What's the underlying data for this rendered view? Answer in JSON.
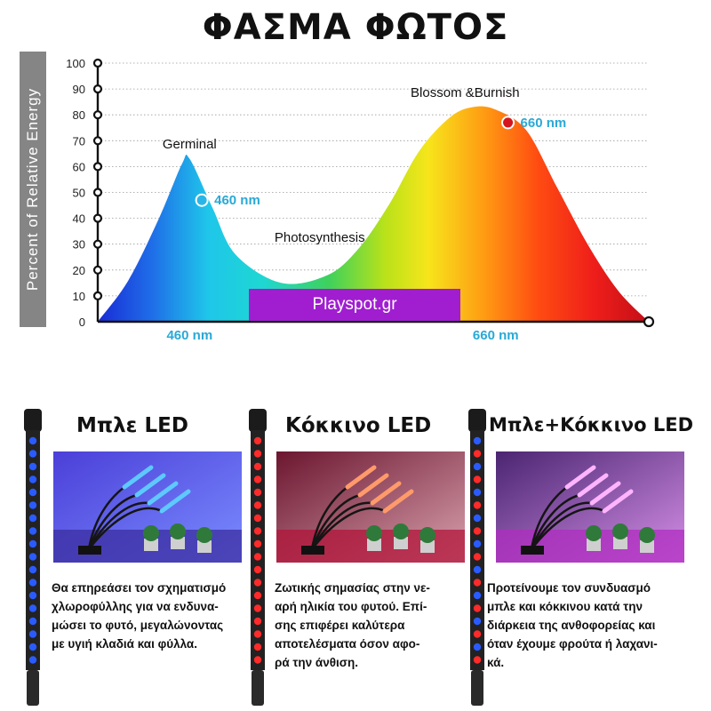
{
  "title": "ΦΑΣΜΑ ΦΩΤΟΣ",
  "watermark": "Playspot.gr",
  "chart_data": {
    "type": "area",
    "ylabel": "Percent of Relative Energy",
    "yticks": [
      0,
      10,
      20,
      30,
      40,
      50,
      60,
      70,
      80,
      90,
      100
    ],
    "ylim": [
      0,
      100
    ],
    "xlim": [
      400,
      760
    ],
    "xticks": [
      {
        "value": 460,
        "label": "460 nm"
      },
      {
        "value": 660,
        "label": "660 nm"
      }
    ],
    "grid": true,
    "series": [
      {
        "x": [
          400,
          420,
          440,
          455,
          460,
          475,
          490,
          520,
          550,
          570,
          590,
          610,
          630,
          645,
          660,
          680,
          700,
          720,
          740,
          760
        ],
        "y": [
          0,
          16,
          40,
          61,
          63,
          44,
          26,
          15,
          18,
          28,
          45,
          66,
          79,
          83,
          82,
          74,
          52,
          30,
          12,
          0
        ]
      }
    ],
    "annotations": [
      {
        "label": "Germinal",
        "x": 460,
        "y": 67
      },
      {
        "label": "460 nm",
        "x": 468,
        "y": 47,
        "point": "blue"
      },
      {
        "label": "Photosynthesis",
        "x": 545,
        "y": 31
      },
      {
        "label": "Blossom &Burnish",
        "x": 640,
        "y": 87
      },
      {
        "label": "660 nm",
        "x": 668,
        "y": 77,
        "point": "red"
      }
    ]
  },
  "cards": [
    {
      "title": "Μπλε LED",
      "light": "blue",
      "lines": [
        "Θα επηρεάσει τον σχηματισμό",
        "χλωροφύλλης για να ενδυνα-",
        "μώσει το φυτό, μεγαλώνοντας",
        "με υγιή κλαδιά και φύλλα."
      ]
    },
    {
      "title": "Κόκκινο LED",
      "light": "red",
      "lines": [
        "Ζωτικής σημασίας στην νε-",
        "αρή ηλικία του φυτού. Επί-",
        "σης επιφέρει καλύτερα",
        "αποτελέσματα όσον αφο-",
        "ρά την άνθιση."
      ]
    },
    {
      "title": "Μπλε+Κόκκινο LED",
      "light": "purple",
      "lines": [
        "Προτείνουμε τον συνδυασμό",
        "μπλε και κόκκινου κατά την",
        "διάρκεια της ανθοφορείας και",
        "όταν έχουμε φρούτα ή λαχανι-",
        "κά."
      ]
    }
  ],
  "colors": {
    "blue_led": "#2a5bff",
    "red_led": "#ff2a2a",
    "purple_led": "#d63ad8",
    "label_blue": "#29a9d6",
    "label_red": "#e0412b",
    "watermark_bg": "#a01ed0"
  }
}
